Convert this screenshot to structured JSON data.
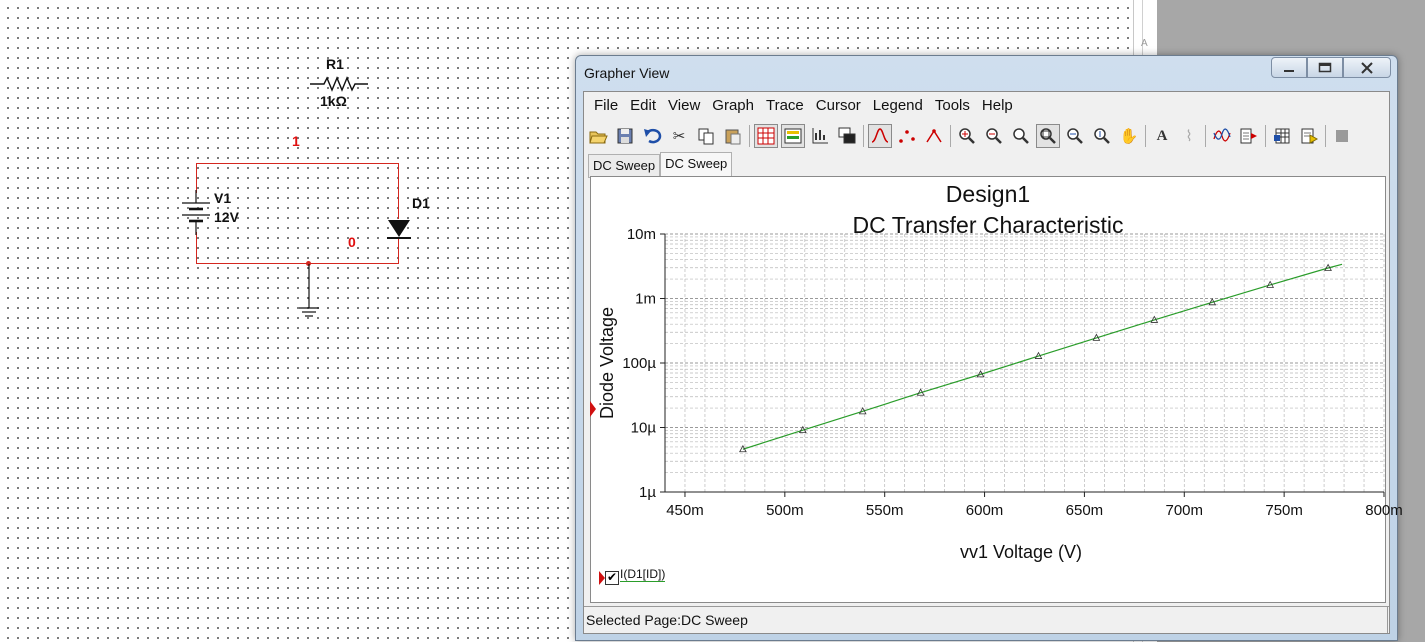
{
  "schematic": {
    "resistor": {
      "ref": "R1",
      "value": "1kΩ"
    },
    "source": {
      "ref": "V1",
      "value": "12V"
    },
    "diode": {
      "ref": "D1"
    },
    "node_top": "1",
    "node_bottom": "0",
    "wire_color": "#d4271f",
    "node_label_color": "#e01010"
  },
  "window": {
    "title": "Grapher View",
    "buttons": [
      "minimize-icon",
      "maximize-icon",
      "close-icon"
    ]
  },
  "menu": [
    "File",
    "Edit",
    "View",
    "Graph",
    "Trace",
    "Cursor",
    "Legend",
    "Tools",
    "Help"
  ],
  "toolbar_icons": [
    "open-icon",
    "save-icon",
    "undo-icon",
    "cut-icon",
    "copy-icon",
    "paste-icon",
    "grid-icon",
    "legend-icon",
    "chart-props-icon",
    "overlay-icon",
    "cursor-icon",
    "select-marks-icon",
    "show-marks-icon",
    "zoom-in-icon",
    "zoom-out-icon",
    "zoom-area-icon",
    "zoom-full-icon",
    "zoom-x-icon",
    "zoom-y-icon",
    "pan-icon",
    "text-icon",
    "probe-icon",
    "trace-icon",
    "export-icon",
    "export-excel-icon",
    "export-lvm-icon",
    "stop-icon"
  ],
  "tabs": [
    "DC Sweep",
    "DC Sweep"
  ],
  "active_tab_index": 1,
  "status": "Selected Page:DC Sweep",
  "legend": {
    "label": "I(D1[ID])",
    "checked": true,
    "color": "#2a9d2a"
  },
  "chart_data": {
    "type": "line",
    "title": "Design1",
    "subtitle": "DC Transfer Characteristic",
    "xlabel": "vv1 Voltage (V)",
    "ylabel": "Diode Voltage",
    "x_scale": "linear",
    "y_scale": "log",
    "xlim": [
      0.44,
      0.8
    ],
    "ylim": [
      1e-06,
      0.01
    ],
    "x_ticks": [
      0.45,
      0.5,
      0.55,
      0.6,
      0.65,
      0.7,
      0.75,
      0.8
    ],
    "x_tick_labels": [
      "450m",
      "500m",
      "550m",
      "600m",
      "650m",
      "700m",
      "750m",
      "800m"
    ],
    "y_ticks": [
      1e-06,
      1e-05,
      0.0001,
      0.001,
      0.01
    ],
    "y_tick_labels": [
      "1µ",
      "10µ",
      "100µ",
      "1m",
      "10m"
    ],
    "grid": true,
    "series": [
      {
        "name": "I(D1[ID])",
        "color": "#2a9d2a",
        "x": [
          0.479,
          0.509,
          0.539,
          0.568,
          0.598,
          0.627,
          0.656,
          0.685,
          0.714,
          0.743,
          0.772,
          0.779
        ],
        "y": [
          4.6e-06,
          9.1e-06,
          1.78e-05,
          3.46e-05,
          6.66e-05,
          0.000128,
          0.000245,
          0.000465,
          0.000872,
          0.00162,
          0.00297,
          0.00339
        ],
        "markers": "triangle"
      }
    ]
  }
}
